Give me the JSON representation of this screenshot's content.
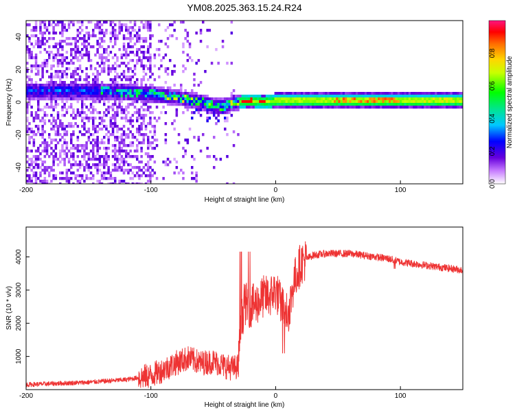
{
  "title": "YM08.2025.363.15.24.R24",
  "chart_data": [
    {
      "type": "heatmap",
      "xlabel": "Height of straight line (km)",
      "ylabel": "Frequency (Hz)",
      "xlim": [
        -200,
        150
      ],
      "ylim": [
        -50,
        50
      ],
      "x_ticks": [
        -200,
        -100,
        0,
        100
      ],
      "y_ticks": [
        -40,
        -20,
        0,
        20,
        40
      ],
      "colorbar": {
        "label": "Normalized spectral amplitude",
        "range": [
          0,
          1
        ],
        "ticks": [
          0.0,
          0.2,
          0.4,
          0.6,
          0.8
        ]
      },
      "ridge": {
        "x": [
          -145,
          -120,
          -100,
          -80,
          -60,
          -45,
          -35,
          -30,
          -20,
          -10,
          0,
          50,
          100,
          150
        ],
        "frequency": [
          7,
          6,
          5,
          3,
          0,
          -3,
          -1,
          0,
          1,
          0,
          1,
          1,
          1,
          1
        ]
      }
    },
    {
      "type": "line",
      "xlabel": "Height of straight line (km)",
      "ylabel": "SNR (10 * v/v)",
      "xlim": [
        -200,
        150
      ],
      "ylim": [
        0,
        4900
      ],
      "x_ticks": [
        -200,
        -100,
        0,
        100
      ],
      "y_ticks": [
        1000,
        2000,
        3000,
        4000
      ],
      "color": "#ee3333",
      "series": {
        "x": [
          -200,
          -150,
          -120,
          -100,
          -90,
          -80,
          -70,
          -60,
          -50,
          -40,
          -35,
          -30,
          -28,
          -25,
          -20,
          -15,
          -10,
          -5,
          0,
          5,
          10,
          15,
          20,
          25,
          30,
          40,
          50,
          60,
          70,
          80,
          90,
          100,
          110,
          120,
          130,
          140,
          150
        ],
        "y": [
          150,
          220,
          300,
          420,
          600,
          800,
          950,
          800,
          850,
          700,
          650,
          700,
          1900,
          2600,
          2500,
          2600,
          2800,
          2800,
          3000,
          2500,
          2300,
          3300,
          3800,
          3950,
          4050,
          4100,
          4100,
          4100,
          4050,
          4000,
          3950,
          3850,
          3800,
          3750,
          3700,
          3650,
          3600
        ]
      }
    }
  ]
}
